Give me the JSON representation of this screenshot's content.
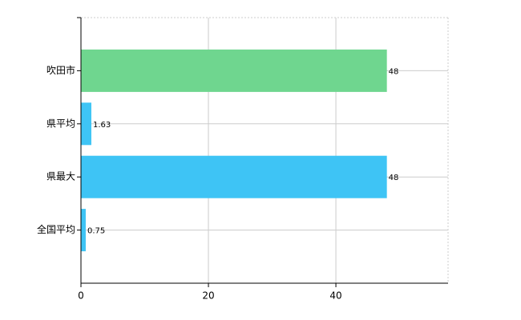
{
  "chart_data": {
    "type": "bar",
    "orientation": "horizontal",
    "categories": [
      "吹田市",
      "県平均",
      "県最大",
      "全国平均"
    ],
    "values": [
      48,
      1.63,
      48,
      0.75
    ],
    "colors": [
      "#6fd68f",
      "#3ec4f5",
      "#3ec4f5",
      "#3ec4f5"
    ],
    "xlim": [
      0,
      57.6
    ],
    "xticks": [
      0,
      20,
      40
    ],
    "grid": true
  }
}
